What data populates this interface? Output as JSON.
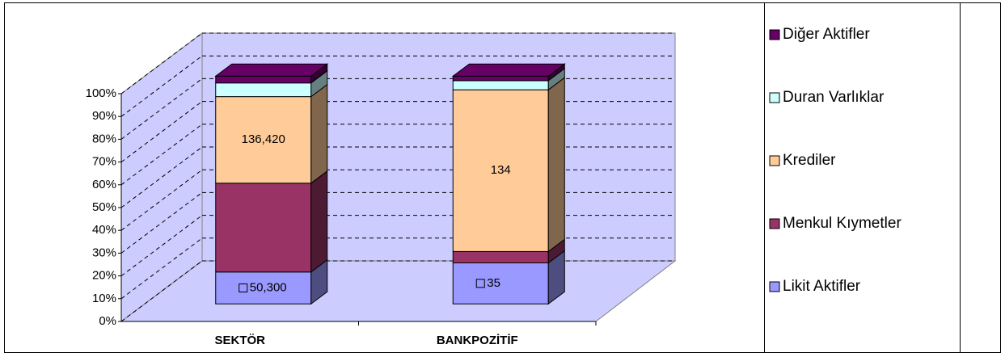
{
  "chart_data": {
    "type": "bar3d_stacked_percent",
    "categories": [
      "SEKTÖR",
      "BANKPOZİTİF"
    ],
    "series": [
      {
        "name": "Likit Aktifler",
        "color": "#9999ff",
        "values": [
          14,
          18
        ],
        "data_labels": [
          "50,300",
          "35"
        ]
      },
      {
        "name": "Menkul Kıymetler",
        "color": "#993366",
        "values": [
          39,
          5
        ]
      },
      {
        "name": "Krediler",
        "color": "#ffcc99",
        "values": [
          38,
          71
        ],
        "data_labels": [
          "136,420",
          "134"
        ]
      },
      {
        "name": "Duran Varlıklar",
        "color": "#ccffff",
        "values": [
          6,
          4
        ]
      },
      {
        "name": "Diğer Aktifler",
        "color": "#660066",
        "values": [
          3,
          2
        ]
      }
    ],
    "ylim": [
      0,
      100
    ],
    "yticks": [
      {
        "value": 0,
        "label": "0%"
      },
      {
        "value": 10,
        "label": "10%"
      },
      {
        "value": 20,
        "label": "20%"
      },
      {
        "value": 30,
        "label": "30%"
      },
      {
        "value": 40,
        "label": "40%"
      },
      {
        "value": 50,
        "label": "50%"
      },
      {
        "value": 60,
        "label": "60%"
      },
      {
        "value": 70,
        "label": "70%"
      },
      {
        "value": 80,
        "label": "80%"
      },
      {
        "value": 90,
        "label": "90%"
      },
      {
        "value": 100,
        "label": "100%"
      }
    ],
    "grid": true,
    "legend": "right"
  }
}
